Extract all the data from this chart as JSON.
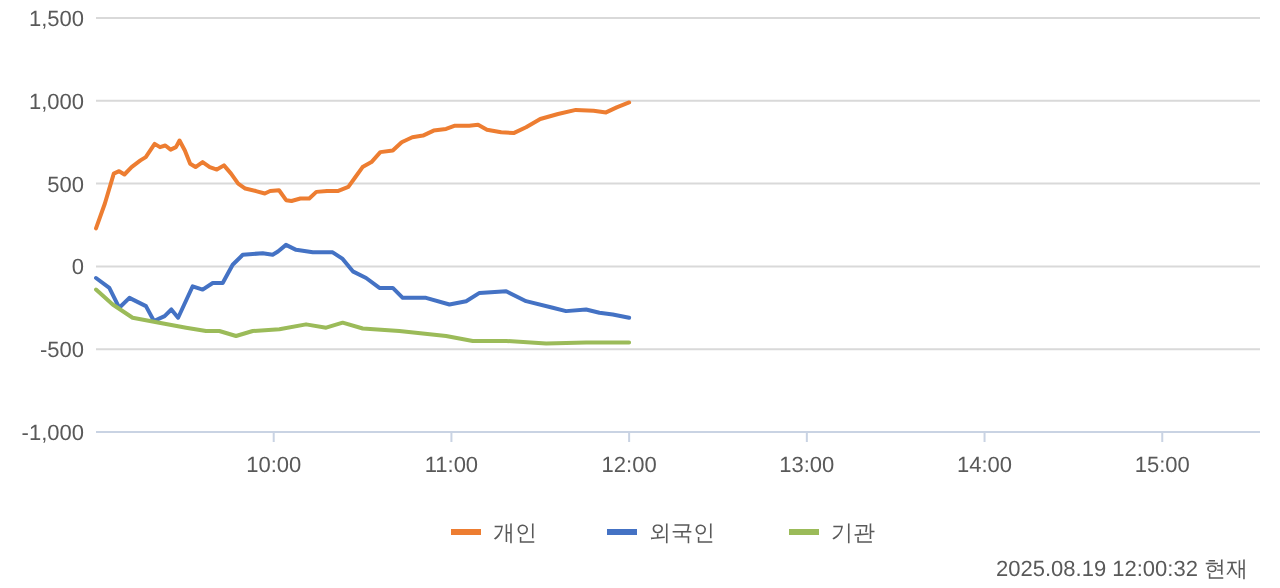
{
  "chart_data": {
    "type": "line",
    "xlim": [
      9,
      15.55
    ],
    "xticks": [
      {
        "value": 10,
        "label": "10:00"
      },
      {
        "value": 11,
        "label": "11:00"
      },
      {
        "value": 12,
        "label": "12:00"
      },
      {
        "value": 13,
        "label": "13:00"
      },
      {
        "value": 14,
        "label": "14:00"
      },
      {
        "value": 15,
        "label": "15:00"
      }
    ],
    "ylim": [
      -1000,
      1500
    ],
    "yticks": [
      {
        "value": -1000,
        "label": "-1,000"
      },
      {
        "value": -500,
        "label": "-500"
      },
      {
        "value": 0,
        "label": "0"
      },
      {
        "value": 500,
        "label": "500"
      },
      {
        "value": 1000,
        "label": "1,000"
      },
      {
        "value": 1500,
        "label": "1,500"
      }
    ],
    "grid": "y",
    "legend": "bottom",
    "marker": "none",
    "annotations": [
      "2025.08.19 12:00:32 현재"
    ],
    "series": [
      {
        "name": "개인",
        "color": "#ed7d31",
        "x": [
          9.0,
          9.05,
          9.1,
          9.13,
          9.16,
          9.2,
          9.25,
          9.28,
          9.33,
          9.36,
          9.39,
          9.42,
          9.45,
          9.47,
          9.5,
          9.53,
          9.56,
          9.6,
          9.64,
          9.68,
          9.72,
          9.76,
          9.8,
          9.84,
          9.9,
          9.95,
          9.98,
          10.03,
          10.07,
          10.1,
          10.15,
          10.2,
          10.24,
          10.3,
          10.36,
          10.42,
          10.46,
          10.5,
          10.55,
          10.6,
          10.67,
          10.72,
          10.78,
          10.84,
          10.9,
          10.97,
          11.02,
          11.1,
          11.15,
          11.2,
          11.28,
          11.35,
          11.42,
          11.5,
          11.6,
          11.7,
          11.8,
          11.87,
          11.93,
          12.0
        ],
        "values": [
          230,
          380,
          560,
          575,
          555,
          600,
          640,
          660,
          740,
          720,
          730,
          705,
          720,
          760,
          700,
          620,
          600,
          630,
          600,
          585,
          610,
          560,
          500,
          470,
          455,
          440,
          455,
          460,
          400,
          395,
          410,
          410,
          450,
          455,
          455,
          480,
          540,
          600,
          630,
          690,
          700,
          750,
          780,
          790,
          820,
          830,
          850,
          850,
          855,
          825,
          810,
          805,
          840,
          890,
          920,
          945,
          940,
          930,
          960,
          990
        ]
      },
      {
        "name": "외국인",
        "color": "#4472c4",
        "x": [
          9.0,
          9.075,
          9.131,
          9.188,
          9.281,
          9.326,
          9.386,
          9.424,
          9.462,
          9.544,
          9.6,
          9.657,
          9.713,
          9.769,
          9.826,
          9.938,
          9.994,
          10.024,
          10.069,
          10.126,
          10.22,
          10.332,
          10.388,
          10.445,
          10.52,
          10.595,
          10.67,
          10.726,
          10.857,
          10.989,
          11.083,
          11.158,
          11.308,
          11.42,
          11.57,
          11.645,
          11.758,
          11.833,
          11.908,
          12.0
        ],
        "values": [
          -70,
          -130,
          -250,
          -190,
          -240,
          -330,
          -300,
          -260,
          -310,
          -120,
          -140,
          -100,
          -100,
          10,
          70,
          80,
          70,
          90,
          130,
          100,
          85,
          85,
          45,
          -30,
          -70,
          -130,
          -130,
          -190,
          -190,
          -230,
          -210,
          -160,
          -150,
          -210,
          -250,
          -270,
          -260,
          -280,
          -290,
          -310
        ]
      },
      {
        "name": "기관",
        "color": "#9bbb59",
        "x": [
          9.0,
          9.094,
          9.206,
          9.356,
          9.507,
          9.619,
          9.694,
          9.788,
          9.882,
          10.032,
          10.182,
          10.295,
          10.388,
          10.501,
          10.707,
          10.97,
          11.12,
          11.308,
          11.533,
          11.758,
          12.0
        ],
        "values": [
          -140,
          -230,
          -310,
          -340,
          -370,
          -390,
          -390,
          -420,
          -390,
          -380,
          -350,
          -370,
          -340,
          -375,
          -390,
          -420,
          -450,
          -450,
          -465,
          -460,
          -460
        ]
      }
    ]
  }
}
